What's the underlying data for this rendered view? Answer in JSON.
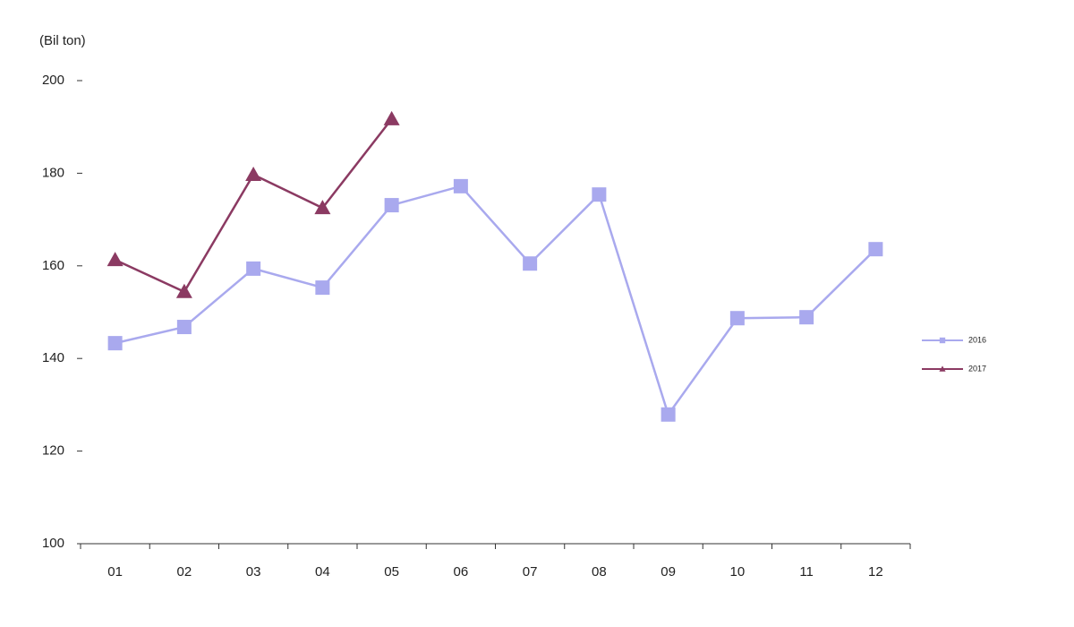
{
  "chart_data": {
    "type": "line",
    "y_label": "(Bil ton)",
    "categories": [
      "01",
      "02",
      "03",
      "04",
      "05",
      "06",
      "07",
      "08",
      "09",
      "10",
      "11",
      "12"
    ],
    "series": [
      {
        "name": "2016",
        "color": "#a9a9ee",
        "marker": "square",
        "values": [
          143.3,
          146.8,
          159.4,
          155.3,
          173.1,
          177.2,
          160.5,
          175.4,
          127.9,
          148.7,
          148.9,
          163.6
        ]
      },
      {
        "name": "2017",
        "color": "#8b3a62",
        "marker": "triangle",
        "values": [
          161.3,
          154.4,
          179.7,
          172.5,
          191.7,
          null,
          null,
          null,
          null,
          null,
          null,
          null
        ]
      }
    ],
    "ylim": [
      100,
      200
    ],
    "yticks": [
      100,
      120,
      140,
      160,
      180,
      200
    ],
    "legend": "right"
  }
}
